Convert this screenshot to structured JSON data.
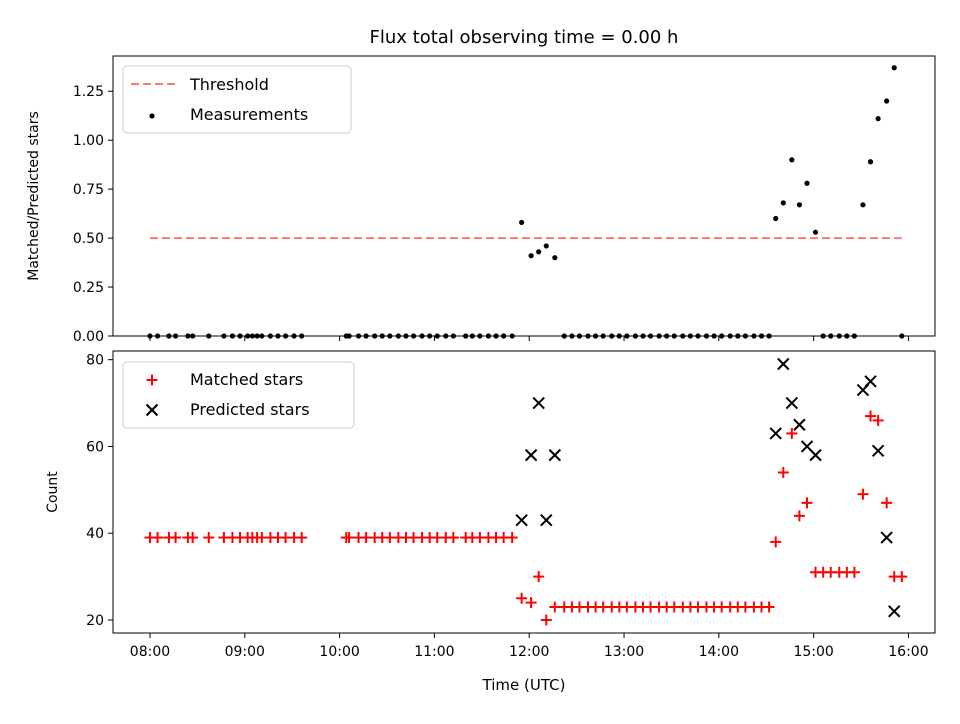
{
  "chart_data": [
    {
      "type": "scatter",
      "title": "Flux total observing time = 0.00 h",
      "xlabel": "",
      "ylabel": "Matched/Predicted stars",
      "xlim": [
        7.61,
        16.28
      ],
      "ylim": [
        0,
        1.43
      ],
      "yticks": [
        0,
        0.25,
        0.5,
        0.75,
        1.0,
        1.25
      ],
      "ytick_labels": [
        "0.00",
        "0.25",
        "0.50",
        "0.75",
        "1.00",
        "1.25"
      ],
      "legend": [
        "Threshold",
        "Measurements"
      ],
      "threshold": {
        "name": "Threshold",
        "value": 0.5,
        "x_start": 8.0,
        "x_end": 15.93,
        "color": "#ff7777"
      },
      "measurements": {
        "name": "Measurements",
        "x": [
          8.0,
          8.08,
          8.2,
          8.27,
          8.4,
          8.45,
          8.62,
          8.78,
          8.87,
          8.95,
          9.03,
          9.08,
          9.13,
          9.18,
          9.27,
          9.35,
          9.43,
          9.52,
          9.6,
          10.07,
          10.1,
          10.2,
          10.28,
          10.37,
          10.45,
          10.53,
          10.62,
          10.7,
          10.78,
          10.87,
          10.95,
          11.03,
          11.12,
          11.2,
          11.33,
          11.4,
          11.48,
          11.57,
          11.65,
          11.73,
          11.82,
          11.92,
          12.02,
          12.1,
          12.18,
          12.27,
          12.37,
          12.45,
          12.53,
          12.62,
          12.7,
          12.78,
          12.87,
          12.95,
          13.03,
          13.12,
          13.2,
          13.28,
          13.37,
          13.45,
          13.53,
          13.62,
          13.7,
          13.78,
          13.87,
          13.95,
          14.03,
          14.12,
          14.2,
          14.28,
          14.37,
          14.45,
          14.53,
          14.6,
          14.68,
          14.77,
          14.85,
          14.93,
          15.02,
          15.1,
          15.18,
          15.27,
          15.35,
          15.43,
          15.52,
          15.6,
          15.68,
          15.77,
          15.85,
          15.93
        ],
        "y": [
          0,
          0,
          0,
          0,
          0,
          0,
          0,
          0,
          0,
          0,
          0,
          0,
          0,
          0,
          0,
          0,
          0,
          0,
          0,
          0,
          0,
          0,
          0,
          0,
          0,
          0,
          0,
          0,
          0,
          0,
          0,
          0,
          0,
          0,
          0,
          0,
          0,
          0,
          0,
          0,
          0,
          0.58,
          0.41,
          0.43,
          0.46,
          0.4,
          0,
          0,
          0,
          0,
          0,
          0,
          0,
          0,
          0,
          0,
          0,
          0,
          0,
          0,
          0,
          0,
          0,
          0,
          0,
          0,
          0,
          0,
          0,
          0,
          0,
          0,
          0,
          0.6,
          0.68,
          0.9,
          0.67,
          0.78,
          0.53,
          0,
          0,
          0,
          0,
          0,
          0.67,
          0.89,
          1.11,
          1.2,
          1.37,
          0
        ]
      }
    },
    {
      "type": "scatter",
      "title": "",
      "xlabel": "Time (UTC)",
      "ylabel": "Count",
      "xlim": [
        7.61,
        16.28
      ],
      "ylim": [
        17,
        82
      ],
      "yticks": [
        20,
        40,
        60,
        80
      ],
      "ytick_labels": [
        "20",
        "40",
        "60",
        "80"
      ],
      "xticks": [
        8,
        9,
        10,
        11,
        12,
        13,
        14,
        15,
        16
      ],
      "xtick_labels": [
        "08:00",
        "09:00",
        "10:00",
        "11:00",
        "12:00",
        "13:00",
        "14:00",
        "15:00",
        "16:00"
      ],
      "legend": [
        "Matched stars",
        "Predicted stars"
      ],
      "series": [
        {
          "name": "Matched stars",
          "marker": "+",
          "color": "#ff0000",
          "x": [
            8.0,
            8.08,
            8.2,
            8.27,
            8.4,
            8.45,
            8.62,
            8.78,
            8.87,
            8.95,
            9.03,
            9.08,
            9.13,
            9.18,
            9.27,
            9.35,
            9.43,
            9.52,
            9.6,
            10.07,
            10.1,
            10.2,
            10.28,
            10.37,
            10.45,
            10.53,
            10.62,
            10.7,
            10.78,
            10.87,
            10.95,
            11.03,
            11.12,
            11.2,
            11.33,
            11.4,
            11.48,
            11.57,
            11.65,
            11.73,
            11.82,
            11.92,
            12.02,
            12.1,
            12.18,
            12.27,
            12.37,
            12.45,
            12.53,
            12.62,
            12.7,
            12.78,
            12.87,
            12.95,
            13.03,
            13.12,
            13.2,
            13.28,
            13.37,
            13.45,
            13.53,
            13.62,
            13.7,
            13.78,
            13.87,
            13.95,
            14.03,
            14.12,
            14.2,
            14.28,
            14.37,
            14.45,
            14.53,
            14.6,
            14.68,
            14.77,
            14.85,
            14.93,
            15.02,
            15.1,
            15.18,
            15.27,
            15.35,
            15.43,
            15.52,
            15.6,
            15.68,
            15.77,
            15.85,
            15.93
          ],
          "y": [
            39,
            39,
            39,
            39,
            39,
            39,
            39,
            39,
            39,
            39,
            39,
            39,
            39,
            39,
            39,
            39,
            39,
            39,
            39,
            39,
            39,
            39,
            39,
            39,
            39,
            39,
            39,
            39,
            39,
            39,
            39,
            39,
            39,
            39,
            39,
            39,
            39,
            39,
            39,
            39,
            39,
            25,
            24,
            30,
            20,
            23,
            23,
            23,
            23,
            23,
            23,
            23,
            23,
            23,
            23,
            23,
            23,
            23,
            23,
            23,
            23,
            23,
            23,
            23,
            23,
            23,
            23,
            23,
            23,
            23,
            23,
            23,
            23,
            38,
            54,
            63,
            44,
            47,
            31,
            31,
            31,
            31,
            31,
            31,
            49,
            67,
            66,
            47,
            30,
            30
          ]
        },
        {
          "name": "Predicted stars",
          "marker": "x",
          "color": "#000000",
          "x": [
            11.92,
            12.02,
            12.1,
            12.18,
            12.27,
            14.6,
            14.68,
            14.77,
            14.85,
            14.93,
            15.02,
            15.52,
            15.6,
            15.68,
            15.77,
            15.85
          ],
          "y": [
            43,
            58,
            70,
            43,
            58,
            63,
            79,
            70,
            65,
            60,
            58,
            73,
            75,
            59,
            39,
            22
          ]
        }
      ]
    }
  ]
}
